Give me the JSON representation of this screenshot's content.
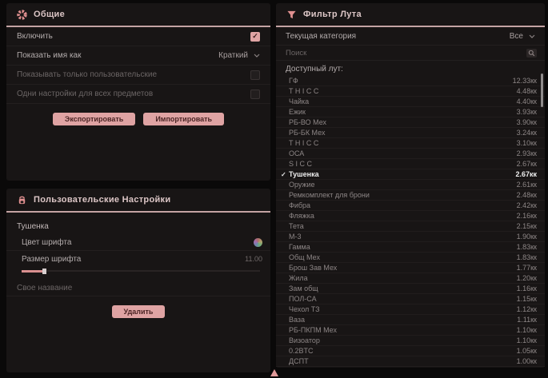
{
  "colors": {
    "accent": "#dfa3a3",
    "panel_bg": "#181515",
    "page_bg": "#0a0909",
    "header_line": "#c4a3a3",
    "selected_text": "#ededed"
  },
  "general_panel": {
    "title": "Общие",
    "rows": [
      {
        "name": "enable",
        "label": "Включить",
        "type": "checkbox",
        "checked": true,
        "dim": false
      },
      {
        "name": "name-display-mode",
        "label": "Показать имя как",
        "type": "select",
        "value": "Краткий",
        "dim": false
      },
      {
        "name": "show-only-custom",
        "label": "Показывать только пользовательские",
        "type": "checkbox",
        "checked": false,
        "dim": true
      },
      {
        "name": "same-settings-for-all",
        "label": "Одни настройки для всех предметов",
        "type": "checkbox",
        "checked": false,
        "dim": true
      }
    ],
    "export_label": "Экспортировать",
    "import_label": "Импортировать"
  },
  "custom_panel": {
    "title": "Пользовательские Настройки",
    "item_name": "Тушенка",
    "font_color_label": "Цвет шрифта",
    "font_size_label": "Размер шрифта",
    "font_size_value": "11.00",
    "custom_name_placeholder": "Свое название",
    "delete_label": "Удалить"
  },
  "loot_panel": {
    "title": "Фильтр Лута",
    "category_label": "Текущая категория",
    "category_value": "Все",
    "search_placeholder": "Поиск",
    "list_label": "Доступный лут:",
    "items": [
      {
        "name": "ГФ",
        "value": "12.33кк",
        "selected": false
      },
      {
        "name": "T H I C C",
        "value": "4.48кк",
        "selected": false
      },
      {
        "name": "Чайка",
        "value": "4.40кк",
        "selected": false
      },
      {
        "name": "Ежик",
        "value": "3.93кк",
        "selected": false
      },
      {
        "name": "РБ-ВО Мех",
        "value": "3.90кк",
        "selected": false
      },
      {
        "name": "РБ-БК Мех",
        "value": "3.24кк",
        "selected": false
      },
      {
        "name": "T H I C C",
        "value": "3.10кк",
        "selected": false
      },
      {
        "name": "ОСА",
        "value": "2.93кк",
        "selected": false
      },
      {
        "name": "S I C C",
        "value": "2.67кк",
        "selected": false
      },
      {
        "name": "Тушенка",
        "value": "2.67кк",
        "selected": true
      },
      {
        "name": "Оружие",
        "value": "2.61кк",
        "selected": false
      },
      {
        "name": "Ремкомплект для брони",
        "value": "2.48кк",
        "selected": false
      },
      {
        "name": "Фибра",
        "value": "2.42кк",
        "selected": false
      },
      {
        "name": "Фляжка",
        "value": "2.16кк",
        "selected": false
      },
      {
        "name": "Тета",
        "value": "2.15кк",
        "selected": false
      },
      {
        "name": "М-3",
        "value": "1.90кк",
        "selected": false
      },
      {
        "name": "Гамма",
        "value": "1.83кк",
        "selected": false
      },
      {
        "name": "Общ Мех",
        "value": "1.83кк",
        "selected": false
      },
      {
        "name": "Брош Зав Мех",
        "value": "1.77кк",
        "selected": false
      },
      {
        "name": "Жила",
        "value": "1.20кк",
        "selected": false
      },
      {
        "name": "Зам общ",
        "value": "1.16кк",
        "selected": false
      },
      {
        "name": "ПОЛ-СА",
        "value": "1.15кк",
        "selected": false
      },
      {
        "name": "Чехол ТЗ",
        "value": "1.12кк",
        "selected": false
      },
      {
        "name": "Ваза",
        "value": "1.11кк",
        "selected": false
      },
      {
        "name": "РБ-ПКПМ Мех",
        "value": "1.10кк",
        "selected": false
      },
      {
        "name": "Визоатор",
        "value": "1.10кк",
        "selected": false
      },
      {
        "name": "0.2BTC",
        "value": "1.05кк",
        "selected": false
      },
      {
        "name": "ДСПТ",
        "value": "1.00кк",
        "selected": false
      }
    ]
  }
}
